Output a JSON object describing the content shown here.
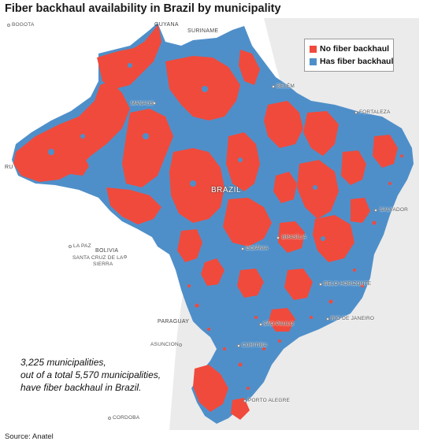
{
  "title": "Fiber backhaul availability in Brazil by municipality",
  "legend": {
    "items": [
      {
        "label": "No fiber backhaul",
        "color": "#f04a3c"
      },
      {
        "label": "Has fiber backhaul",
        "color": "#4f8fc9"
      }
    ]
  },
  "map": {
    "country_label": "BRAZIL",
    "neighbors": {
      "guyana": "GUYANA",
      "suriname": "SURINAME",
      "bolivia": "BOLIVIA",
      "paraguay": "PARAGUAY",
      "peru_fragment": "RU"
    },
    "cities": {
      "bogota": "BOGOTA",
      "manaus": "MANAUS",
      "belem": "BELÉM",
      "fortaleza": "FORTALEZA",
      "salvador": "SALVADOR",
      "brasilia": "BRASÍLIA",
      "goiania": "GOIÂNIA",
      "belo_horizonte": "BELO HORIZONTE",
      "rio": "RIO DE JANEIRO",
      "sao_paulo": "SÃO PAULO",
      "curitiba": "CURITIBA",
      "porto_alegre": "PORTO ALEGRE",
      "la_paz": "LA PAZ",
      "santa_cruz_1": "SANTA CRUZ DE LA",
      "santa_cruz_2": "SIERRA",
      "asuncion": "ASUNCION",
      "cordoba": "CORDOBA"
    }
  },
  "annotation": {
    "line1": "3,225 municipalities,",
    "line2": "out of a total 5,570 municipalities,",
    "line3": "have fiber backhaul in Brazil."
  },
  "source": "Source: Anatel",
  "colors": {
    "no_fiber": "#f04a3c",
    "has_fiber": "#4f8fc9",
    "ocean": "#ebebeb",
    "land": "#ffffff"
  }
}
